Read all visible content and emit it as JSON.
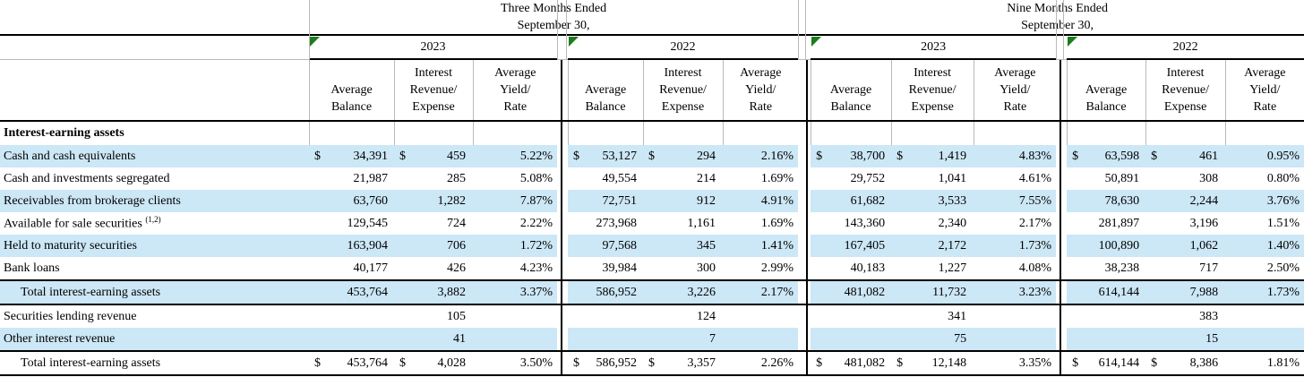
{
  "colors": {
    "row_stripe": "#cce7f6",
    "flag_green": "#1d7d1d",
    "grid_gray": "#b9b9b9",
    "rule_black": "#000000"
  },
  "header": {
    "periods": [
      {
        "line1": "Three Months Ended",
        "line2": "September 30,"
      },
      {
        "line1": "Nine Months Ended",
        "line2": "September 30,"
      }
    ],
    "year_columns": [
      "2023",
      "2022",
      "2023",
      "2022"
    ],
    "sub_columns": {
      "balance": [
        "Average",
        "Balance"
      ],
      "revenue": [
        "Interest",
        "Revenue/",
        "Expense"
      ],
      "yield": [
        "Average",
        "Yield/",
        "Rate"
      ]
    }
  },
  "section_title": "Interest-earning assets",
  "rows": [
    {
      "label": "Cash and cash equivalents",
      "stripe": true,
      "groups": [
        {
          "bal_cur": "$",
          "bal": "34,391",
          "rev_cur": "$",
          "rev": "459",
          "yld": "5.22%"
        },
        {
          "bal_cur": "$",
          "bal": "53,127",
          "rev_cur": "$",
          "rev": "294",
          "yld": "2.16%"
        },
        {
          "bal_cur": "$",
          "bal": "38,700",
          "rev_cur": "$",
          "rev": "1,419",
          "yld": "4.83%"
        },
        {
          "bal_cur": "$",
          "bal": "63,598",
          "rev_cur": "$",
          "rev": "461",
          "yld": "0.95%"
        }
      ]
    },
    {
      "label": "Cash and investments segregated",
      "stripe": false,
      "groups": [
        {
          "bal": "21,987",
          "rev": "285",
          "yld": "5.08%"
        },
        {
          "bal": "49,554",
          "rev": "214",
          "yld": "1.69%"
        },
        {
          "bal": "29,752",
          "rev": "1,041",
          "yld": "4.61%"
        },
        {
          "bal": "50,891",
          "rev": "308",
          "yld": "0.80%"
        }
      ]
    },
    {
      "label": "Receivables from brokerage clients",
      "stripe": true,
      "groups": [
        {
          "bal": "63,760",
          "rev": "1,282",
          "yld": "7.87%"
        },
        {
          "bal": "72,751",
          "rev": "912",
          "yld": "4.91%"
        },
        {
          "bal": "61,682",
          "rev": "3,533",
          "yld": "7.55%"
        },
        {
          "bal": "78,630",
          "rev": "2,244",
          "yld": "3.76%"
        }
      ]
    },
    {
      "label": "Available for sale securities ",
      "sup": "(1,2)",
      "stripe": false,
      "groups": [
        {
          "bal": "129,545",
          "rev": "724",
          "yld": "2.22%"
        },
        {
          "bal": "273,968",
          "rev": "1,161",
          "yld": "1.69%"
        },
        {
          "bal": "143,360",
          "rev": "2,340",
          "yld": "2.17%"
        },
        {
          "bal": "281,897",
          "rev": "3,196",
          "yld": "1.51%"
        }
      ]
    },
    {
      "label": "Held to maturity securities",
      "stripe": true,
      "groups": [
        {
          "bal": "163,904",
          "rev": "706",
          "yld": "1.72%"
        },
        {
          "bal": "97,568",
          "rev": "345",
          "yld": "1.41%"
        },
        {
          "bal": "167,405",
          "rev": "2,172",
          "yld": "1.73%"
        },
        {
          "bal": "100,890",
          "rev": "1,062",
          "yld": "1.40%"
        }
      ]
    },
    {
      "label": "Bank loans",
      "stripe": false,
      "groups": [
        {
          "bal": "40,177",
          "rev": "426",
          "yld": "4.23%"
        },
        {
          "bal": "39,984",
          "rev": "300",
          "yld": "2.99%"
        },
        {
          "bal": "40,183",
          "rev": "1,227",
          "yld": "4.08%"
        },
        {
          "bal": "38,238",
          "rev": "717",
          "yld": "2.50%"
        }
      ]
    },
    {
      "label": "Total interest-earning assets",
      "stripe": true,
      "indent": true,
      "rule": true,
      "groups": [
        {
          "bal": "453,764",
          "rev": "3,882",
          "yld": "3.37%"
        },
        {
          "bal": "586,952",
          "rev": "3,226",
          "yld": "2.17%"
        },
        {
          "bal": "481,082",
          "rev": "11,732",
          "yld": "3.23%"
        },
        {
          "bal": "614,144",
          "rev": "7,988",
          "yld": "1.73%"
        }
      ]
    },
    {
      "label": "Securities lending revenue",
      "stripe": false,
      "groups": [
        {
          "rev": "105"
        },
        {
          "rev": "124"
        },
        {
          "rev": "341"
        },
        {
          "rev": "383"
        }
      ]
    },
    {
      "label": "Other interest revenue",
      "stripe": true,
      "groups": [
        {
          "rev": "41"
        },
        {
          "rev": "7"
        },
        {
          "rev": "75"
        },
        {
          "rev": "15"
        }
      ]
    },
    {
      "label": "Total interest-earning assets",
      "stripe": false,
      "indent": true,
      "rule": true,
      "groups": [
        {
          "bal_cur": "$",
          "bal": "453,764",
          "rev_cur": "$",
          "rev": "4,028",
          "yld": "3.50%"
        },
        {
          "bal_cur": "$",
          "bal": "586,952",
          "rev_cur": "$",
          "rev": "3,357",
          "yld": "2.26%"
        },
        {
          "bal_cur": "$",
          "bal": "481,082",
          "rev_cur": "$",
          "rev": "12,148",
          "yld": "3.35%"
        },
        {
          "bal_cur": "$",
          "bal": "614,144",
          "rev_cur": "$",
          "rev": "8,386",
          "yld": "1.81%"
        }
      ]
    }
  ]
}
